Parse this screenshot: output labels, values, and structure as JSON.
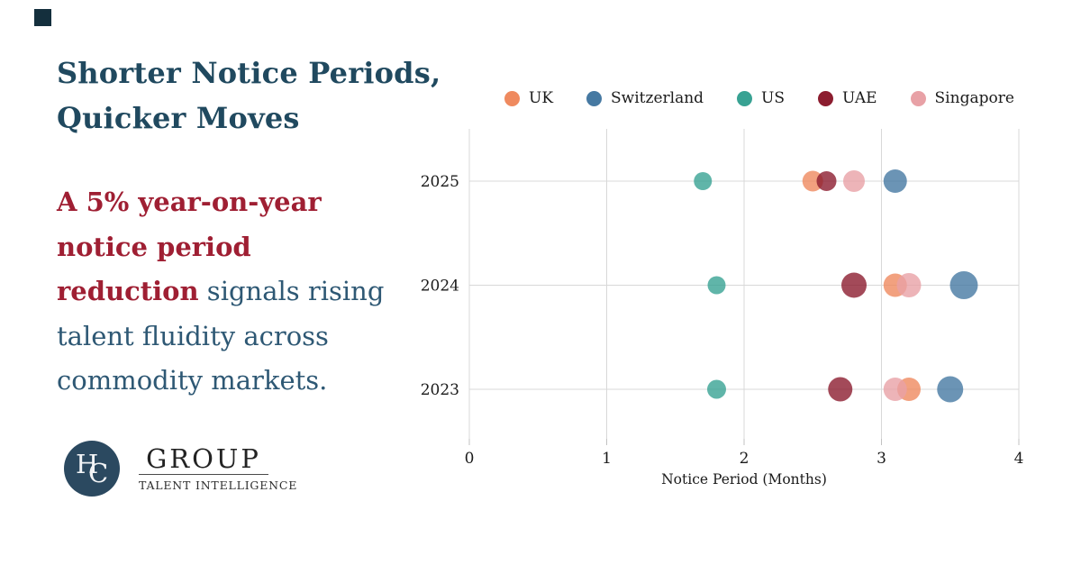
{
  "headline": {
    "line1": "Shorter Notice Periods,",
    "line2": "Quicker Moves",
    "color": "#20495F"
  },
  "summary": {
    "highlight_color": "#9F1F33",
    "text_color": "#2E5874",
    "lines": [
      {
        "highlight": "A 5% year-on-year",
        "rest": ""
      },
      {
        "highlight": "notice period",
        "rest": ""
      },
      {
        "highlight": "reduction",
        "rest": " signals rising"
      },
      {
        "highlight": "",
        "rest": "talent fluidity across"
      },
      {
        "highlight": "",
        "rest": "commodity markets."
      }
    ]
  },
  "logo": {
    "monogram_h": "H",
    "monogram_c": "C",
    "name": "GROUP",
    "tagline": "TALENT INTELLIGENCE",
    "circle_color": "#2B4960"
  },
  "chart_data": {
    "type": "scatter",
    "title": "",
    "xlabel": "Notice Period (Months)",
    "ylabel": "",
    "xlim": [
      0,
      4
    ],
    "x_ticks": [
      0,
      1,
      2,
      3,
      4
    ],
    "y_categories": [
      "2025",
      "2024",
      "2023"
    ],
    "grid": true,
    "legend_position": "top",
    "grid_color": "#d8d8d8",
    "tick_color": "#c2c2c2",
    "axis_text_color": "#1a1a1a",
    "dot_opacity": 0.8,
    "series": [
      {
        "name": "UK",
        "color": "#EF8A5F",
        "points": [
          {
            "year": "2025",
            "x": 2.5,
            "r": 11.5
          },
          {
            "year": "2024",
            "x": 3.1,
            "r": 13
          },
          {
            "year": "2023",
            "x": 3.2,
            "r": 13
          }
        ]
      },
      {
        "name": "Switzerland",
        "color": "#4679A2",
        "points": [
          {
            "year": "2025",
            "x": 3.1,
            "r": 13
          },
          {
            "year": "2024",
            "x": 3.6,
            "r": 15.5
          },
          {
            "year": "2023",
            "x": 3.5,
            "r": 14.5
          }
        ]
      },
      {
        "name": "US",
        "color": "#38A293",
        "points": [
          {
            "year": "2025",
            "x": 1.7,
            "r": 10
          },
          {
            "year": "2024",
            "x": 1.8,
            "r": 10
          },
          {
            "year": "2023",
            "x": 1.8,
            "r": 10.5
          }
        ]
      },
      {
        "name": "UAE",
        "color": "#8C1D2F",
        "points": [
          {
            "year": "2025",
            "x": 2.6,
            "r": 11
          },
          {
            "year": "2024",
            "x": 2.8,
            "r": 14
          },
          {
            "year": "2023",
            "x": 2.7,
            "r": 13.5
          }
        ]
      },
      {
        "name": "Singapore",
        "color": "#E8A1A6",
        "points": [
          {
            "year": "2025",
            "x": 2.8,
            "r": 12
          },
          {
            "year": "2024",
            "x": 3.2,
            "r": 13.5
          },
          {
            "year": "2023",
            "x": 3.1,
            "r": 13
          }
        ]
      }
    ]
  }
}
